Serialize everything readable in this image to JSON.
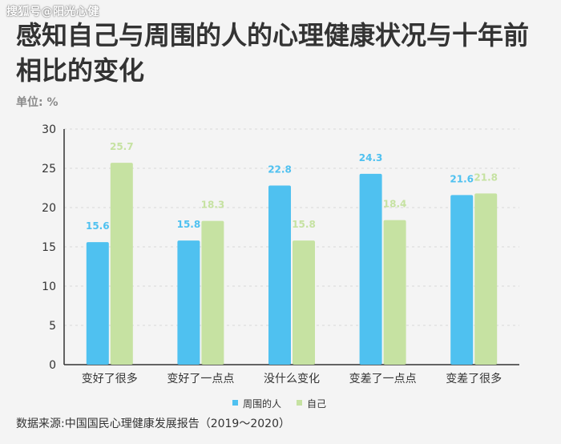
{
  "watermark": "搜狐号@阳光心健",
  "title": "感知自己与周围的人的心理健康状况与十年前相比的变化",
  "unit_label": "单位: %",
  "source": "数据来源:中国国民心理健康发展报告（2019～2020）",
  "colors": {
    "series1": "#4fc1f0",
    "series2": "#c6e2a2"
  },
  "chart_data": {
    "type": "bar",
    "categories": [
      "变好了很多",
      "变好了一点点",
      "没什么变化",
      "变差了一点点",
      "变差了很多"
    ],
    "series": [
      {
        "name": "周围的人",
        "values": [
          15.6,
          15.8,
          22.8,
          24.3,
          21.6
        ]
      },
      {
        "name": "自己",
        "values": [
          25.7,
          18.3,
          15.8,
          18.4,
          21.8
        ]
      }
    ],
    "yticks": [
      0,
      5,
      10,
      15,
      20,
      25,
      30
    ],
    "ylim": [
      0,
      30
    ],
    "grid": true,
    "legend_position": "bottom"
  }
}
